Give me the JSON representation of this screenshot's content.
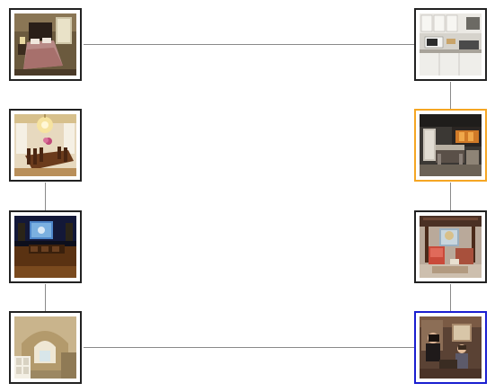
{
  "board": {
    "tiles": [
      {
        "id": "bedroom",
        "icon": "bedroom-photo-icon",
        "state": "default"
      },
      {
        "id": "kitchen",
        "icon": "kitchen-photo-icon",
        "state": "default"
      },
      {
        "id": "dining-room",
        "icon": "dining-room-photo-icon",
        "state": "default"
      },
      {
        "id": "dark-kitchen",
        "icon": "dark-kitchen-photo-icon",
        "state": "highlighted"
      },
      {
        "id": "home-theater",
        "icon": "home-theater-photo-icon",
        "state": "default"
      },
      {
        "id": "living-room",
        "icon": "living-room-photo-icon",
        "state": "default"
      },
      {
        "id": "bathroom",
        "icon": "bathroom-photo-icon",
        "state": "default"
      },
      {
        "id": "people-room",
        "icon": "people-room-photo-icon",
        "state": "selected"
      }
    ],
    "colors": {
      "highlighted": "#f5a623",
      "selected": "#1a1fd0",
      "default": "#222222",
      "connector": "#8a8a8a"
    }
  }
}
